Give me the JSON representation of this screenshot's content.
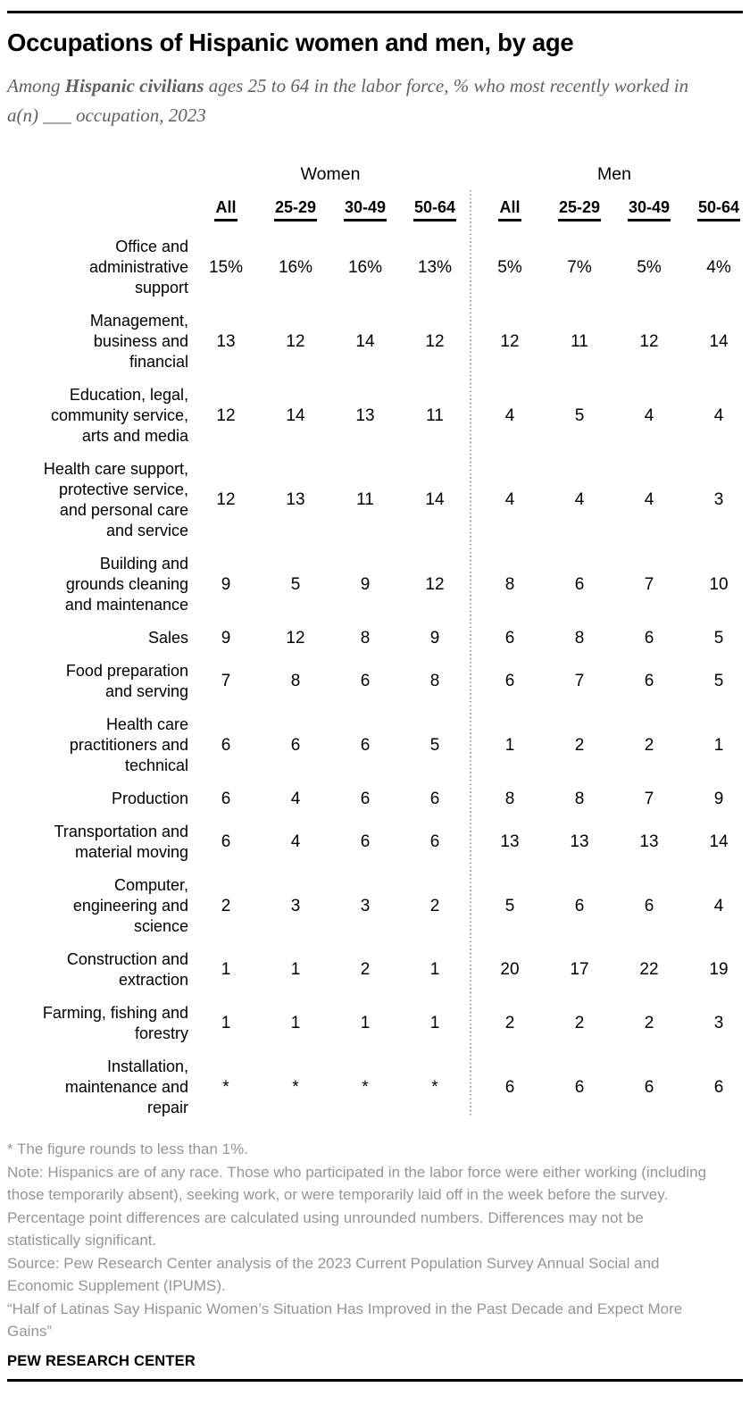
{
  "header": {
    "title": "Occupations of Hispanic women and men, by age",
    "subtitle_prefix": "Among ",
    "subtitle_bold": "Hispanic civilians",
    "subtitle_suffix": " ages 25 to 64 in the labor force, % who most recently worked in a(n) ___ occupation, 2023"
  },
  "table": {
    "group_headers": [
      "Women",
      "Men"
    ],
    "col_headers": [
      "All",
      "25-29",
      "30-49",
      "50-64",
      "All",
      "25-29",
      "30-49",
      "50-64"
    ],
    "rows": [
      {
        "label": "Office and\nadministrative\nsupport",
        "values": [
          "15%",
          "16%",
          "16%",
          "13%",
          "5%",
          "7%",
          "5%",
          "4%"
        ]
      },
      {
        "label": "Management,\nbusiness and\nfinancial",
        "values": [
          "13",
          "12",
          "14",
          "12",
          "12",
          "11",
          "12",
          "14"
        ]
      },
      {
        "label": "Education, legal,\ncommunity service,\narts and media",
        "values": [
          "12",
          "14",
          "13",
          "11",
          "4",
          "5",
          "4",
          "4"
        ]
      },
      {
        "label": "Health care support,\nprotective service,\nand personal care\nand service",
        "values": [
          "12",
          "13",
          "11",
          "14",
          "4",
          "4",
          "4",
          "3"
        ]
      },
      {
        "label": "Building and\ngrounds cleaning\nand maintenance",
        "values": [
          "9",
          "5",
          "9",
          "12",
          "8",
          "6",
          "7",
          "10"
        ]
      },
      {
        "label": "Sales",
        "values": [
          "9",
          "12",
          "8",
          "9",
          "6",
          "8",
          "6",
          "5"
        ]
      },
      {
        "label": "Food preparation\nand serving",
        "values": [
          "7",
          "8",
          "6",
          "8",
          "6",
          "7",
          "6",
          "5"
        ]
      },
      {
        "label": "Health care\npractitioners and\ntechnical",
        "values": [
          "6",
          "6",
          "6",
          "5",
          "1",
          "2",
          "2",
          "1"
        ]
      },
      {
        "label": "Production",
        "values": [
          "6",
          "4",
          "6",
          "6",
          "8",
          "8",
          "7",
          "9"
        ]
      },
      {
        "label": "Transportation and\nmaterial moving",
        "values": [
          "6",
          "4",
          "6",
          "6",
          "13",
          "13",
          "13",
          "14"
        ]
      },
      {
        "label": "Computer,\nengineering and\nscience",
        "values": [
          "2",
          "3",
          "3",
          "2",
          "5",
          "6",
          "6",
          "4"
        ]
      },
      {
        "label": "Construction and\nextraction",
        "values": [
          "1",
          "1",
          "2",
          "1",
          "20",
          "17",
          "22",
          "19"
        ]
      },
      {
        "label": "Farming, fishing and\nforestry",
        "values": [
          "1",
          "1",
          "1",
          "1",
          "2",
          "2",
          "2",
          "3"
        ]
      },
      {
        "label": "Installation,\nmaintenance and\nrepair",
        "values": [
          "*",
          "*",
          "*",
          "*",
          "6",
          "6",
          "6",
          "6"
        ]
      }
    ]
  },
  "footer": {
    "asterisk_note": "* The figure rounds to less than 1%.",
    "note": "Note: Hispanics are of any race. Those who participated in the labor force were either working (including those temporarily absent), seeking work, or were temporarily laid off in the week before the survey. Percentage point differences are calculated using unrounded numbers. Differences may not be statistically significant.",
    "source": "Source: Pew Research Center analysis of the 2023 Current Population Survey Annual Social and Economic Supplement (IPUMS).",
    "quote": "“Half of Latinas Say Hispanic Women’s Situation Has Improved in the Past Decade and Expect More Gains”",
    "brand": "PEW RESEARCH CENTER"
  },
  "chart_data": {
    "type": "table",
    "title": "Occupations of Hispanic women and men, by age",
    "subtitle": "Among Hispanic civilians ages 25 to 64 in the labor force, % who most recently worked in a(n) ___ occupation, 2023",
    "unit": "%",
    "column_groups": [
      "Women",
      "Men"
    ],
    "columns": [
      "Women All",
      "Women 25-29",
      "Women 30-49",
      "Women 50-64",
      "Men All",
      "Men 25-29",
      "Men 30-49",
      "Men 50-64"
    ],
    "row_categories": [
      "Office and administrative support",
      "Management, business and financial",
      "Education, legal, community service, arts and media",
      "Health care support, protective service, and personal care and service",
      "Building and grounds cleaning and maintenance",
      "Sales",
      "Food preparation and serving",
      "Health care practitioners and technical",
      "Production",
      "Transportation and material moving",
      "Computer, engineering and science",
      "Construction and extraction",
      "Farming, fishing and forestry",
      "Installation, maintenance and repair"
    ],
    "values": [
      [
        15,
        16,
        16,
        13,
        5,
        7,
        5,
        4
      ],
      [
        13,
        12,
        14,
        12,
        12,
        11,
        12,
        14
      ],
      [
        12,
        14,
        13,
        11,
        4,
        5,
        4,
        4
      ],
      [
        12,
        13,
        11,
        14,
        4,
        4,
        4,
        3
      ],
      [
        9,
        5,
        9,
        12,
        8,
        6,
        7,
        10
      ],
      [
        9,
        12,
        8,
        9,
        6,
        8,
        6,
        5
      ],
      [
        7,
        8,
        6,
        8,
        6,
        7,
        6,
        5
      ],
      [
        6,
        6,
        6,
        5,
        1,
        2,
        2,
        1
      ],
      [
        6,
        4,
        6,
        6,
        8,
        8,
        7,
        9
      ],
      [
        6,
        4,
        6,
        6,
        13,
        13,
        13,
        14
      ],
      [
        2,
        3,
        3,
        2,
        5,
        6,
        6,
        4
      ],
      [
        1,
        1,
        2,
        1,
        20,
        17,
        22,
        19
      ],
      [
        1,
        1,
        1,
        1,
        2,
        2,
        2,
        3
      ],
      [
        "*",
        "*",
        "*",
        "*",
        6,
        6,
        6,
        6
      ]
    ],
    "asterisk_means": "rounds to less than 1%"
  }
}
